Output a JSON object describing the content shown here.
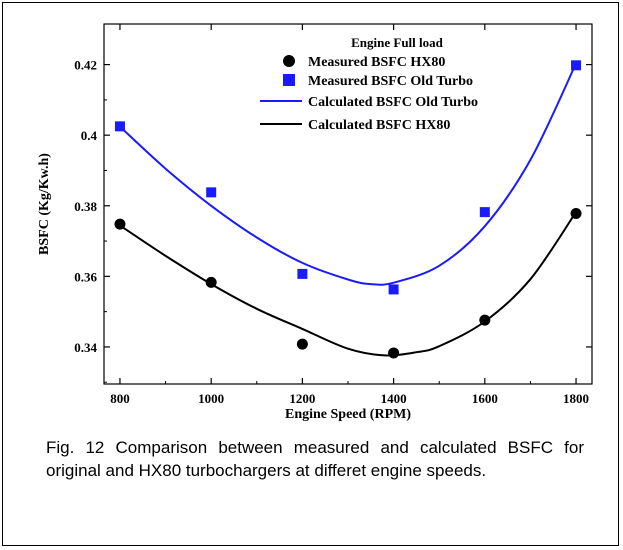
{
  "caption": "Fig. 12 Comparison between measured and calculated BSFC for original and HX80 turbochargers at differet engine speeds.",
  "colors": {
    "black_series": "#000000",
    "blue_series": "#1a1aff"
  },
  "chart_data": {
    "type": "scatter",
    "title": "Engine Full load",
    "xlabel": "Engine Speed (RPM)",
    "ylabel": "BSFC (Kg/Kw.h)",
    "xlim": [
      765,
      1835
    ],
    "ylim": [
      0.3295,
      0.4315
    ],
    "xticks": [
      800,
      1000,
      1200,
      1400,
      1600,
      1800
    ],
    "yticks": [
      0.34,
      0.36,
      0.38,
      0.4,
      0.42
    ],
    "xtick_labels": [
      "800",
      "1000",
      "1200",
      "1400",
      "1600",
      "1800"
    ],
    "ytick_labels": [
      "0.34",
      "0.36",
      "0.38",
      "0.4",
      "0.42"
    ],
    "legend_position": "top-right",
    "series": [
      {
        "name": "Measured BSFC HX80",
        "kind": "points",
        "marker": "circle",
        "color": "#000000",
        "x": [
          800,
          1000,
          1200,
          1400,
          1600,
          1800
        ],
        "y": [
          0.3748,
          0.3583,
          0.3408,
          0.3383,
          0.3476,
          0.3778
        ]
      },
      {
        "name": "Measured BSFC Old Turbo",
        "kind": "points",
        "marker": "square",
        "color": "#1a1aff",
        "x": [
          800,
          1000,
          1200,
          1400,
          1600,
          1800
        ],
        "y": [
          0.4025,
          0.3838,
          0.3607,
          0.3563,
          0.3782,
          0.4198
        ]
      },
      {
        "name": "Calculated BSFC Old Turbo",
        "kind": "line",
        "color": "#1a1aff",
        "x": [
          800,
          900,
          1000,
          1100,
          1200,
          1300,
          1350,
          1400,
          1500,
          1600,
          1700,
          1800
        ],
        "y": [
          0.4024,
          0.3905,
          0.38,
          0.371,
          0.3638,
          0.3591,
          0.3578,
          0.3582,
          0.363,
          0.3742,
          0.393,
          0.4203
        ]
      },
      {
        "name": "Calculated BSFC HX80",
        "kind": "line",
        "color": "#000000",
        "x": [
          800,
          900,
          1000,
          1100,
          1200,
          1300,
          1380,
          1450,
          1500,
          1600,
          1700,
          1800
        ],
        "y": [
          0.3744,
          0.3658,
          0.3578,
          0.3508,
          0.3451,
          0.3395,
          0.3376,
          0.3385,
          0.3402,
          0.3472,
          0.3592,
          0.3782
        ]
      }
    ]
  }
}
